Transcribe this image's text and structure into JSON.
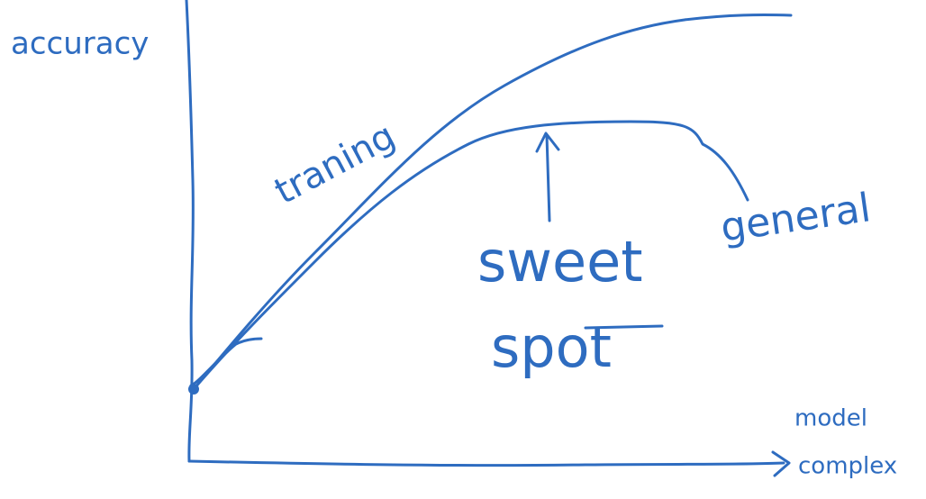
{
  "labels": {
    "y_axis": "accuracy",
    "x_axis_line1": "model",
    "x_axis_line2": "complex",
    "training_curve": "traning",
    "general_curve": "general",
    "annotation_line1": "sweet",
    "annotation_line2": "spot"
  }
}
